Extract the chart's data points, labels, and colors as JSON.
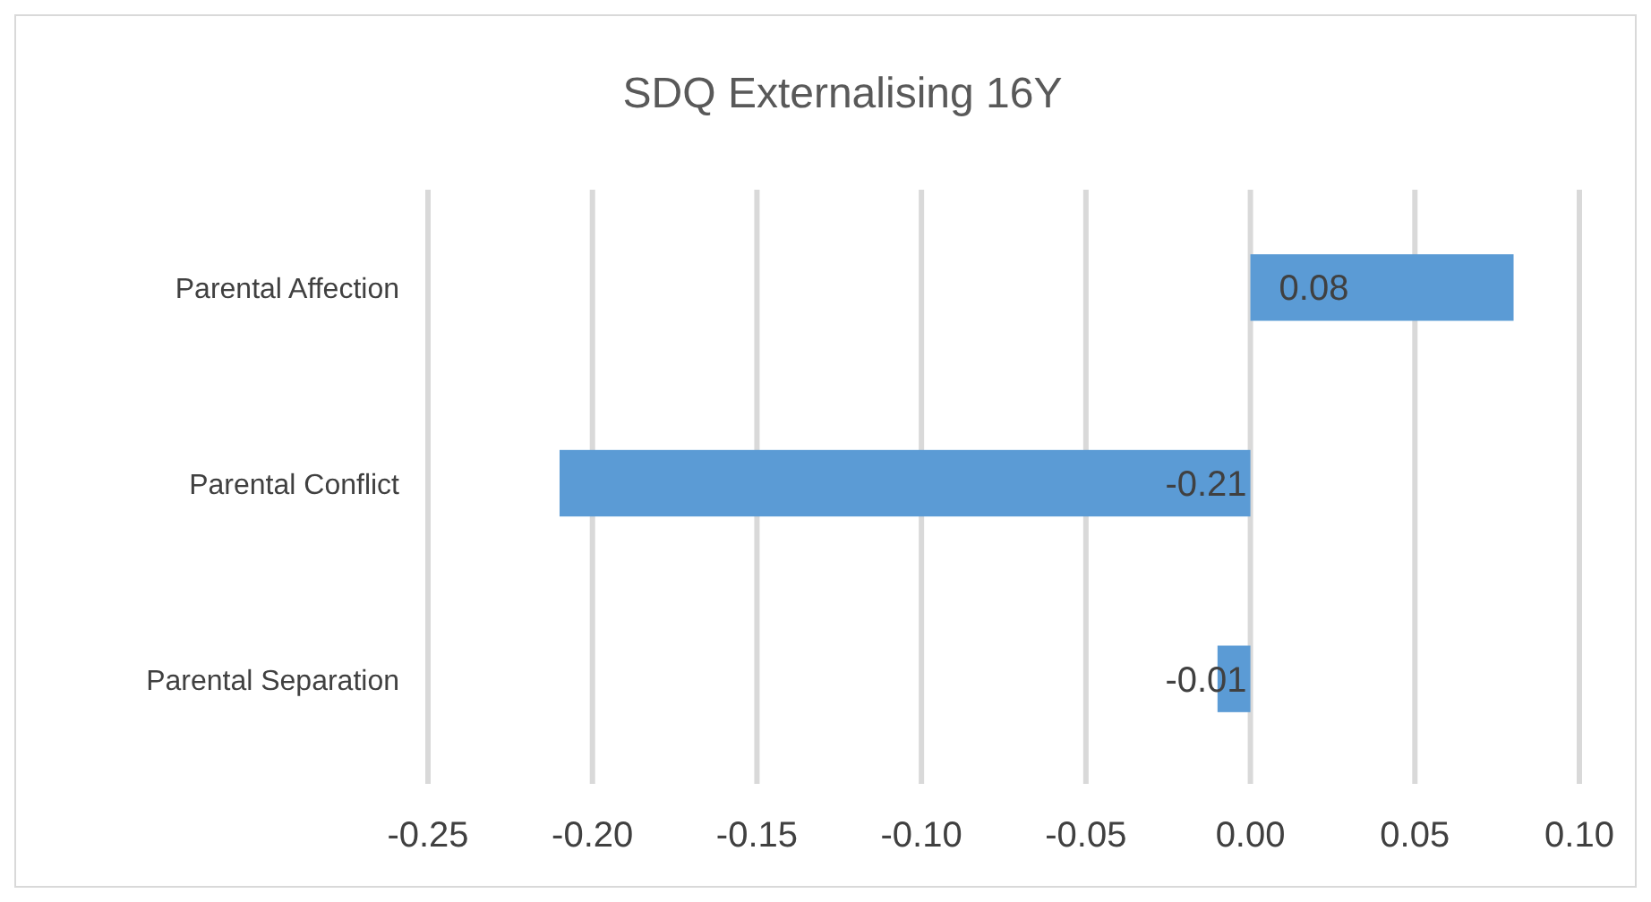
{
  "chart_data": {
    "type": "bar",
    "orientation": "horizontal",
    "title": "SDQ Externalising 16Y",
    "categories": [
      "Parental Affection",
      "Parental Conflict",
      "Parental Separation"
    ],
    "values": [
      0.08,
      -0.21,
      -0.01
    ],
    "color": "#5b9bd5",
    "xlim": [
      -0.25,
      0.1
    ],
    "xticks": [
      {
        "value": -0.25,
        "label": "-0.25"
      },
      {
        "value": -0.2,
        "label": "-0.20"
      },
      {
        "value": -0.15,
        "label": "-0.15"
      },
      {
        "value": -0.1,
        "label": "-0.10"
      },
      {
        "value": -0.05,
        "label": "-0.05"
      },
      {
        "value": 0,
        "label": "0.00"
      },
      {
        "value": 0.05,
        "label": "0.05"
      },
      {
        "value": 0.1,
        "label": "0.10"
      }
    ],
    "grid": "x",
    "data_labels": true
  }
}
